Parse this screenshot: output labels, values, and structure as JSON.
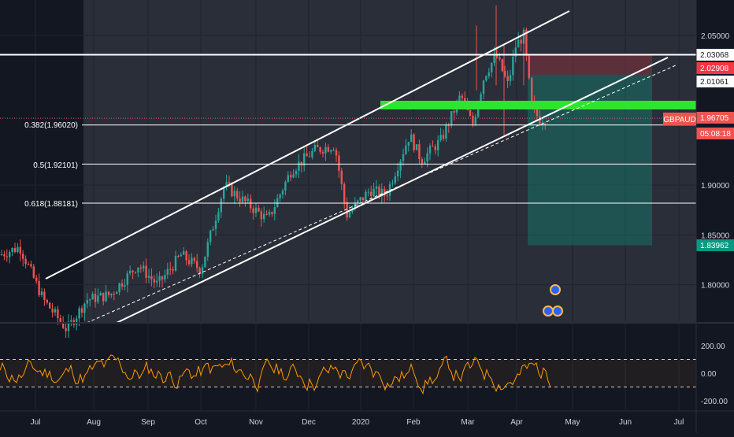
{
  "chart_data": {
    "type": "candlestick",
    "symbol": "GBPAUD",
    "last_price_label": "1.96705",
    "countdown": "05:08:18",
    "price_axis": {
      "ticks": [
        {
          "value": 2.05,
          "label": "2.05000"
        },
        {
          "value": 1.9,
          "label": "1.90000"
        },
        {
          "value": 1.85,
          "label": "1.85000"
        },
        {
          "value": 1.8,
          "label": "1.80000"
        }
      ]
    },
    "price_badges": [
      {
        "label": "2.03068",
        "bg": "#ffffff",
        "fg": "#131722"
      },
      {
        "label": "2.02908",
        "bg": "#f23645",
        "fg": "#ffffff"
      },
      {
        "label": "2.01061",
        "bg": "#ffffff",
        "fg": "#131722"
      },
      {
        "label": "1.96705",
        "bg": "#ef5350",
        "fg": "#ffffff"
      },
      {
        "label": "05:08:18",
        "bg": "#ef5350",
        "fg": "#ffffff"
      },
      {
        "label": "1.83962",
        "bg": "#089981",
        "fg": "#ffffff"
      }
    ],
    "x_axis": {
      "labels": [
        "Jul",
        "Aug",
        "Sep",
        "Oct",
        "Nov",
        "Dec",
        "2020",
        "Feb",
        "Mar",
        "Apr",
        "May",
        "Jun",
        "Jul"
      ]
    },
    "fibonacci": [
      {
        "ratio": "0.382",
        "price": 1.9602,
        "label": "0.382(1.96020)"
      },
      {
        "ratio": "0.5",
        "price": 1.921,
        "label": "0.5(1.92101)"
      },
      {
        "ratio": "0.618",
        "price": 1.88181,
        "label": "0.618(1.88181)"
      }
    ],
    "horizontal_line": {
      "price": 2.03068
    },
    "position": {
      "entry": 2.01061,
      "stop": 2.02908,
      "target": 1.83962
    },
    "oscillator": {
      "ticks": [
        {
          "value": 200,
          "label": "200.00"
        },
        {
          "value": 0,
          "label": "0.00"
        },
        {
          "value": -200,
          "label": "-200.00"
        }
      ],
      "overbought": 100,
      "oversold": -100
    },
    "colors": {
      "up": "#26a69a",
      "down": "#ef5350",
      "zone": "#2ee52e",
      "oscillator": "#ff9800",
      "background": "#131722",
      "highlight": "#2a2e39"
    }
  }
}
